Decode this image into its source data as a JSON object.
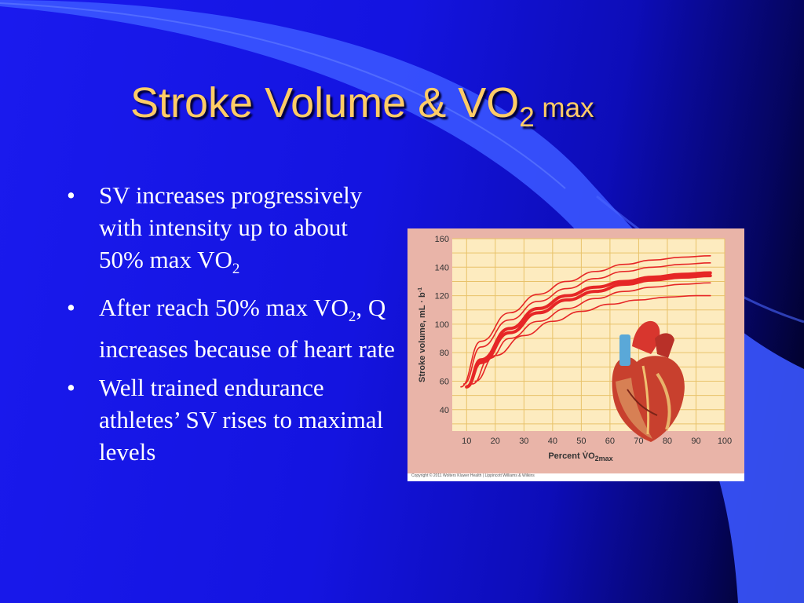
{
  "slide": {
    "title_main": "Stroke Volume & VO",
    "title_sub": "2",
    "title_suffix": " max",
    "bullets": [
      {
        "parts": [
          "SV increases progressively with intensity up to about 50% max VO",
          "2",
          ""
        ]
      },
      {
        "parts": [
          "After reach 50% max VO",
          "2",
          ", Q increases because of heart rate"
        ]
      },
      {
        "parts": [
          "Well trained endurance athletes’ SV rises to maximal levels",
          "",
          ""
        ]
      }
    ],
    "bullet_glyph": "•"
  },
  "chart_data": {
    "type": "line",
    "ylabel": "Stroke volume, mL · b",
    "ylabel_sup": "-1",
    "xlabel": "Percent V̇O",
    "xlabel_sub": "2max",
    "xlim": [
      5,
      100
    ],
    "ylim": [
      25,
      160
    ],
    "xticks": [
      10,
      20,
      30,
      40,
      50,
      60,
      70,
      80,
      90,
      100
    ],
    "yticks": [
      40,
      60,
      80,
      100,
      120,
      140,
      160
    ],
    "grid": true,
    "credit": "Copyright © 2011 Wolters Kluwer Health | Lippincott Williams & Wilkins",
    "series": [
      {
        "x": [
          8,
          15,
          25,
          35,
          45,
          55,
          65,
          75,
          85,
          95
        ],
        "y": [
          56,
          88,
          108,
          121,
          130,
          137,
          142,
          145,
          147,
          148
        ],
        "thick": false
      },
      {
        "x": [
          9,
          15,
          25,
          35,
          45,
          55,
          65,
          75,
          85,
          95
        ],
        "y": [
          58,
          84,
          103,
          116,
          125,
          132,
          137,
          140,
          142,
          143
        ],
        "thick": false
      },
      {
        "x": [
          10,
          15,
          25,
          35,
          45,
          55,
          65,
          75,
          85,
          95
        ],
        "y": [
          56,
          75,
          97,
          111,
          120,
          126,
          130,
          133,
          135,
          136
        ],
        "thick": true
      },
      {
        "x": [
          10,
          15,
          25,
          35,
          45,
          55,
          65,
          75,
          85,
          95
        ],
        "y": [
          56,
          73,
          94,
          108,
          117,
          123,
          128,
          131,
          133,
          134
        ],
        "thick": true
      },
      {
        "x": [
          12,
          18,
          25,
          35,
          45,
          55,
          65,
          75,
          85,
          95
        ],
        "y": [
          58,
          76,
          90,
          102,
          111,
          118,
          123,
          126,
          128,
          129
        ],
        "thick": false
      },
      {
        "x": [
          13,
          20,
          30,
          40,
          50,
          60,
          70,
          80,
          90,
          95
        ],
        "y": [
          60,
          78,
          92,
          102,
          109,
          114,
          117,
          119,
          120,
          120
        ],
        "thick": false
      }
    ],
    "colors": {
      "plot_bg": "#fdebbf",
      "frame_bg": "#e9b4a8",
      "grid": "#e8c26a",
      "line": "#e62626"
    }
  }
}
